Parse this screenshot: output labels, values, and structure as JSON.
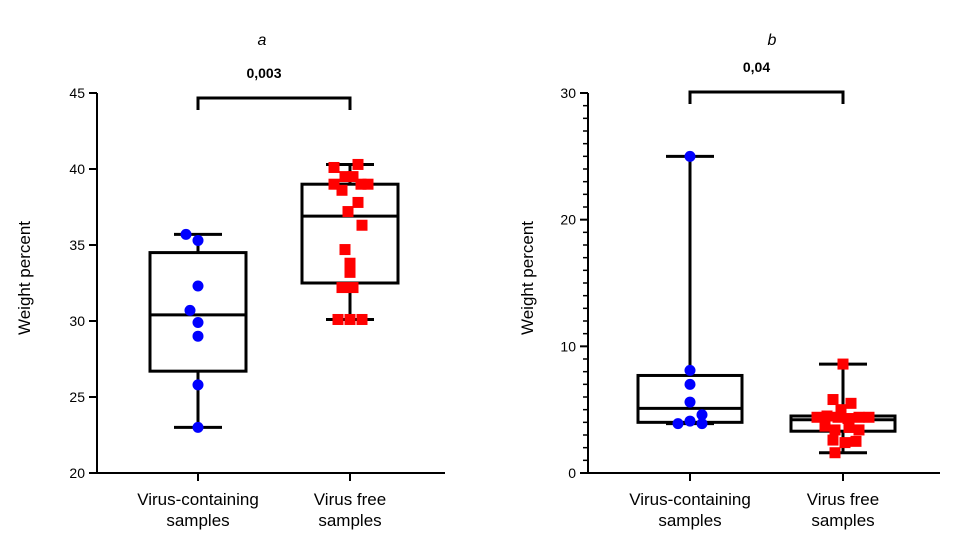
{
  "chart_data": [
    {
      "type": "box",
      "panel_label": "a",
      "ylabel": "Weight percent",
      "ylim": [
        20,
        45
      ],
      "yticks": [
        20,
        25,
        30,
        35,
        40,
        45
      ],
      "categories": [
        "Virus-containing\nsamples",
        "Virus free\nsamples"
      ],
      "significance": "0,003",
      "marker_colors": [
        "#0000ff",
        "#ff0000"
      ],
      "series": [
        {
          "category": "Virus-containing samples",
          "marker": "circle",
          "whisker_low": 23.0,
          "q1": 26.7,
          "median": 30.4,
          "q3": 34.5,
          "whisker_high": 35.7,
          "points": [
            {
              "dx": -0.12,
              "y": 35.7
            },
            {
              "dx": 0.0,
              "y": 35.3
            },
            {
              "dx": 0.0,
              "y": 32.3
            },
            {
              "dx": -0.08,
              "y": 30.7
            },
            {
              "dx": 0.0,
              "y": 29.9
            },
            {
              "dx": 0.0,
              "y": 29.0
            },
            {
              "dx": 0.0,
              "y": 25.8
            },
            {
              "dx": 0.0,
              "y": 23.0
            }
          ]
        },
        {
          "category": "Virus free samples",
          "marker": "square",
          "whisker_low": 30.1,
          "q1": 32.5,
          "median": 36.9,
          "q3": 39.0,
          "whisker_high": 40.3,
          "points": [
            {
              "dx": -0.16,
              "y": 40.1
            },
            {
              "dx": 0.08,
              "y": 40.3
            },
            {
              "dx": -0.16,
              "y": 39.0
            },
            {
              "dx": -0.05,
              "y": 39.5
            },
            {
              "dx": 0.03,
              "y": 39.5
            },
            {
              "dx": 0.11,
              "y": 39.0
            },
            {
              "dx": 0.18,
              "y": 39.0
            },
            {
              "dx": -0.08,
              "y": 38.6
            },
            {
              "dx": 0.08,
              "y": 37.8
            },
            {
              "dx": -0.02,
              "y": 37.2
            },
            {
              "dx": 0.12,
              "y": 36.3
            },
            {
              "dx": -0.05,
              "y": 34.7
            },
            {
              "dx": 0.0,
              "y": 33.8
            },
            {
              "dx": 0.0,
              "y": 33.2
            },
            {
              "dx": -0.08,
              "y": 32.2
            },
            {
              "dx": 0.03,
              "y": 32.2
            },
            {
              "dx": -0.12,
              "y": 30.1
            },
            {
              "dx": 0.0,
              "y": 30.1
            },
            {
              "dx": 0.12,
              "y": 30.1
            }
          ]
        }
      ]
    },
    {
      "type": "box",
      "panel_label": "b",
      "ylabel": "Weight percent",
      "ylim": [
        0,
        30
      ],
      "yticks": [
        0,
        10,
        20,
        30
      ],
      "minor_ticks": 5,
      "categories": [
        "Virus-containing\nsamples",
        "Virus free\nsamples"
      ],
      "significance": "0,04",
      "marker_colors": [
        "#0000ff",
        "#ff0000"
      ],
      "series": [
        {
          "category": "Virus-containing samples",
          "marker": "circle",
          "whisker_low": 3.9,
          "q1": 4.0,
          "median": 5.1,
          "q3": 7.7,
          "whisker_high": 25.0,
          "points": [
            {
              "dx": 0.0,
              "y": 25.0
            },
            {
              "dx": 0.0,
              "y": 8.1
            },
            {
              "dx": 0.0,
              "y": 7.0
            },
            {
              "dx": 0.0,
              "y": 5.6
            },
            {
              "dx": 0.12,
              "y": 4.6
            },
            {
              "dx": -0.12,
              "y": 3.9
            },
            {
              "dx": 0.0,
              "y": 4.1
            },
            {
              "dx": 0.12,
              "y": 3.9
            }
          ]
        },
        {
          "category": "Virus free samples",
          "marker": "square",
          "whisker_low": 1.6,
          "q1": 3.3,
          "median": 4.2,
          "q3": 4.5,
          "whisker_high": 8.6,
          "points": [
            {
              "dx": 0.0,
              "y": 8.6
            },
            {
              "dx": -0.1,
              "y": 5.8
            },
            {
              "dx": 0.08,
              "y": 5.5
            },
            {
              "dx": -0.02,
              "y": 5.0
            },
            {
              "dx": -0.26,
              "y": 4.4
            },
            {
              "dx": -0.16,
              "y": 4.5
            },
            {
              "dx": -0.05,
              "y": 4.4
            },
            {
              "dx": 0.05,
              "y": 4.3
            },
            {
              "dx": 0.16,
              "y": 4.4
            },
            {
              "dx": 0.26,
              "y": 4.4
            },
            {
              "dx": -0.18,
              "y": 3.7
            },
            {
              "dx": -0.08,
              "y": 3.4
            },
            {
              "dx": 0.06,
              "y": 3.6
            },
            {
              "dx": 0.16,
              "y": 3.4
            },
            {
              "dx": -0.1,
              "y": 2.6
            },
            {
              "dx": 0.02,
              "y": 2.4
            },
            {
              "dx": 0.13,
              "y": 2.5
            },
            {
              "dx": -0.08,
              "y": 1.6
            }
          ]
        }
      ]
    }
  ]
}
